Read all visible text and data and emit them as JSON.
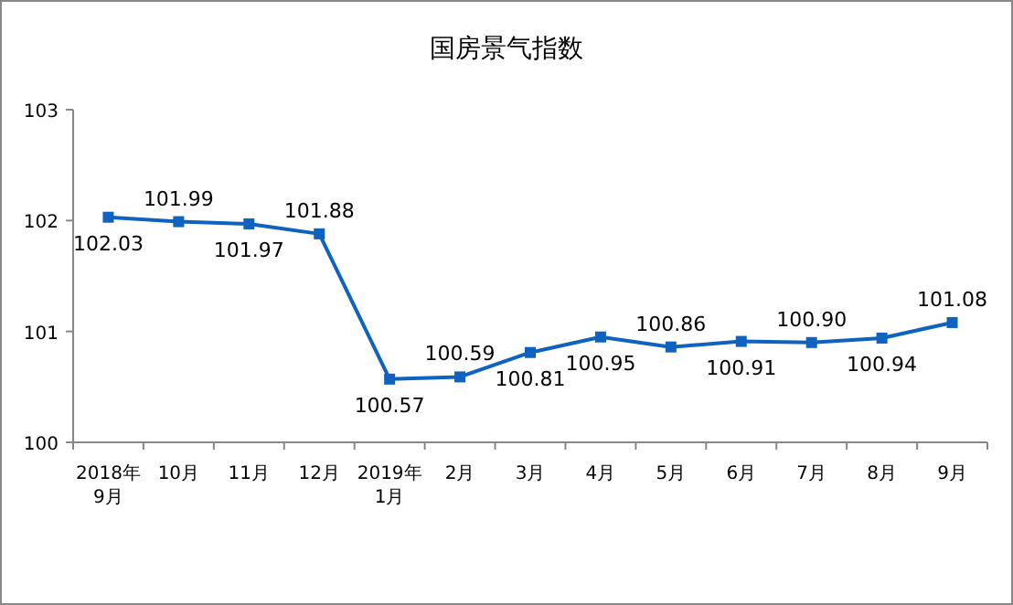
{
  "chart_data": {
    "type": "line",
    "title": "国房景气指数",
    "categories": [
      "2018年\n9月",
      "10月",
      "11月",
      "12月",
      "2019年\n1月",
      "2月",
      "3月",
      "4月",
      "5月",
      "6月",
      "7月",
      "8月",
      "9月"
    ],
    "series": [
      {
        "color": "#0f62c0",
        "values": [
          102.03,
          101.99,
          101.97,
          101.88,
          100.57,
          100.59,
          100.81,
          100.95,
          100.86,
          100.91,
          100.9,
          100.94,
          101.08
        ],
        "value_labels": [
          "102.03",
          "101.99",
          "101.97",
          "101.88",
          "100.57",
          "100.59",
          "100.81",
          "100.95",
          "100.86",
          "100.91",
          "100.90",
          "100.94",
          "101.08"
        ]
      }
    ],
    "ylim": [
      100,
      103
    ],
    "yticks": [
      100,
      101,
      102,
      103
    ],
    "marker": "square",
    "line_style": "solid"
  }
}
